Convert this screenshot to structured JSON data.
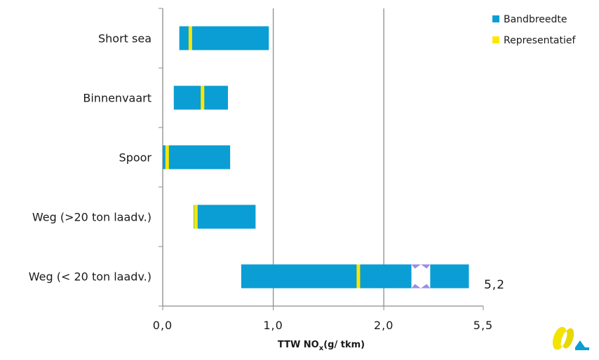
{
  "chart_data": {
    "type": "bar",
    "orientation": "horizontal",
    "categories": [
      "Short sea",
      "Binnenvaart",
      "Spoor",
      "Weg (>20 ton laadv.)",
      "Weg (< 20 ton laadv.)"
    ],
    "series": [
      {
        "name": "Bandbreedte",
        "color": "#0A9ED4",
        "ranges": [
          [
            0.15,
            0.96
          ],
          [
            0.1,
            0.59
          ],
          [
            0.0,
            0.61
          ],
          [
            0.28,
            0.84
          ],
          [
            0.71,
            5.2
          ]
        ]
      },
      {
        "name": "Representatief",
        "color": "#FFE600",
        "values": [
          0.25,
          0.36,
          0.04,
          0.3,
          1.77
        ]
      }
    ],
    "axis_break": {
      "from": 2.25,
      "to": 2.42,
      "color": "#9B8CE8"
    },
    "xlabel_main": "TTW NO",
    "xlabel_sub": "x",
    "xlabel_rest": "(g/ tkm)",
    "xticks": [
      {
        "value": 0.0,
        "label": "0,0"
      },
      {
        "value": 1.0,
        "label": "1,0"
      },
      {
        "value": 2.0,
        "label": "2,0"
      }
    ],
    "xmax_label": "5,5",
    "bar_end_label": "5,2",
    "xlim_display": [
      0,
      2.9
    ],
    "grid": true,
    "legend_position": "top-right"
  }
}
